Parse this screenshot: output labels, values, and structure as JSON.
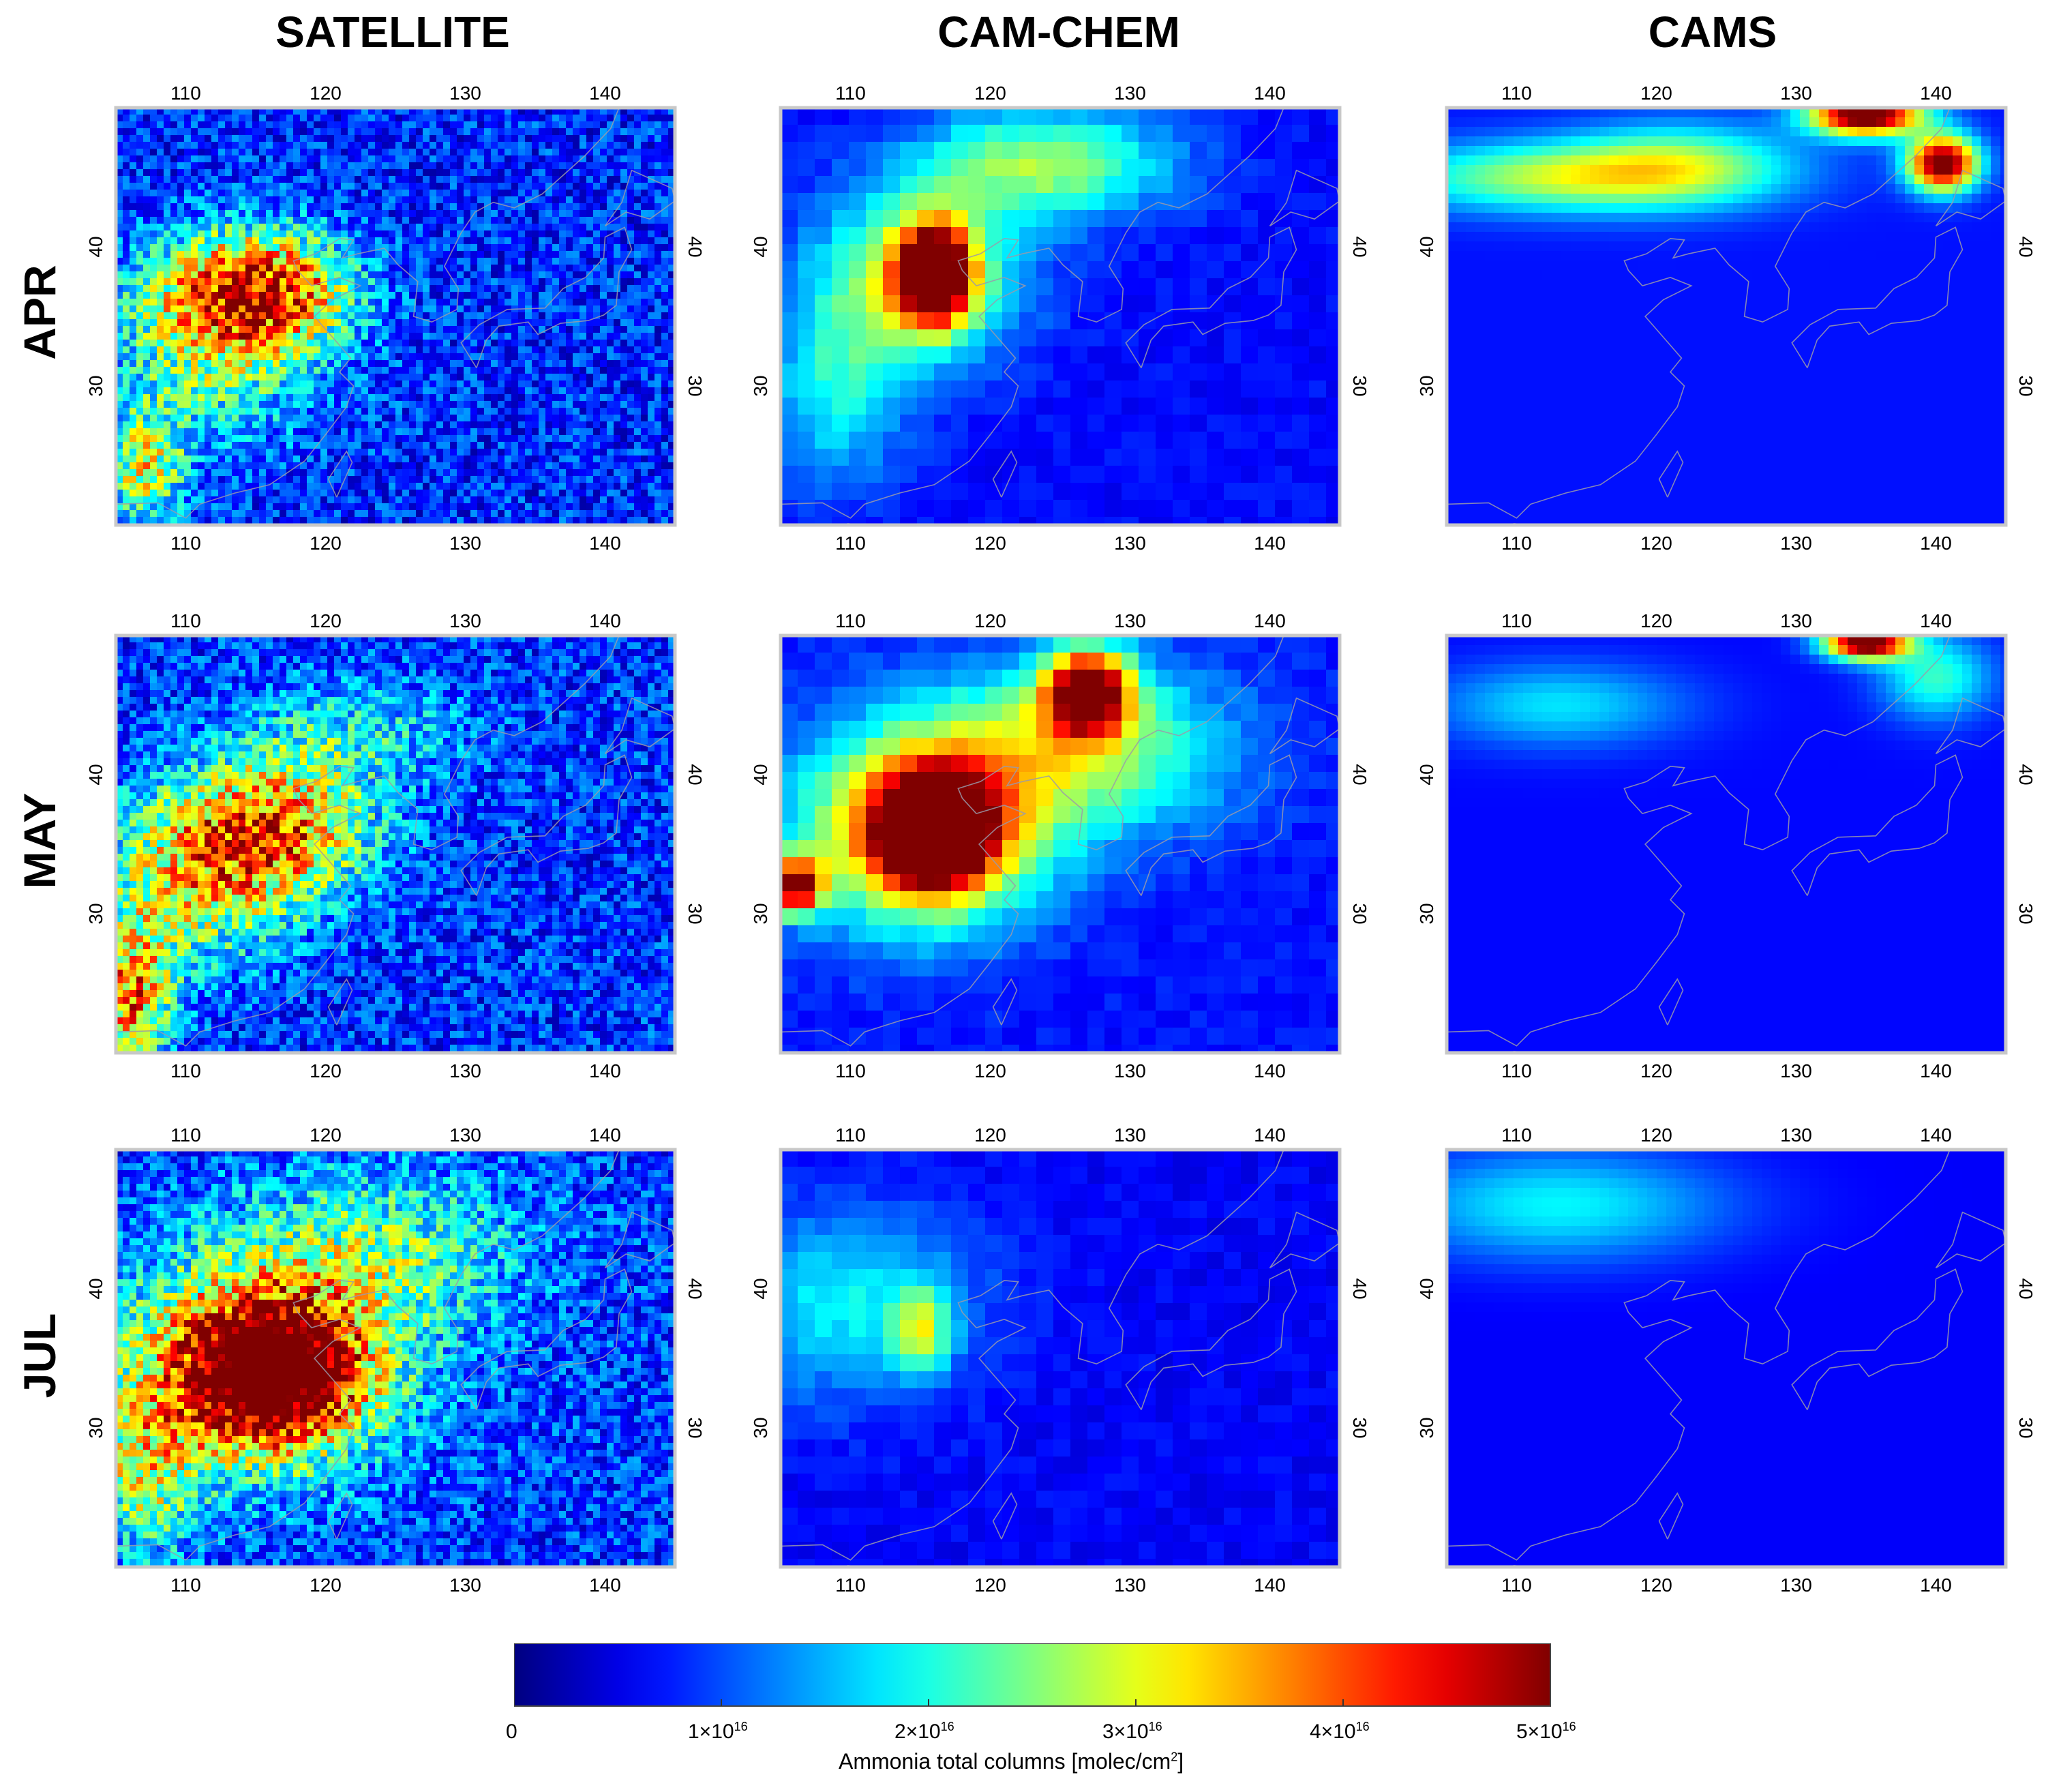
{
  "columns": [
    "SATELLITE",
    "CAM-CHEM",
    "CAMS"
  ],
  "rows": [
    "APR",
    "MAY",
    "JUL"
  ],
  "lon_ticks": [
    "110",
    "120",
    "130",
    "140"
  ],
  "lat_ticks": [
    "40",
    "30"
  ],
  "colorbar": {
    "ticks": [
      {
        "base": "0",
        "exp": ""
      },
      {
        "base": "1×10",
        "exp": "16"
      },
      {
        "base": "2×10",
        "exp": "16"
      },
      {
        "base": "3×10",
        "exp": "16"
      },
      {
        "base": "4×10",
        "exp": "16"
      },
      {
        "base": "5×10",
        "exp": "16"
      }
    ],
    "label_text": "Ammonia total columns [molec/cm",
    "label_exp": "2",
    "label_close": "]",
    "range": [
      0,
      5e+16
    ],
    "colormap": "jet"
  },
  "map_extent": {
    "lon": [
      105,
      145
    ],
    "lat": [
      20,
      50
    ]
  },
  "colors": {
    "background": "#00007f",
    "coastline": "#9a9aaa"
  },
  "panels": [
    {
      "col": 0,
      "row": 0,
      "style": "speckle",
      "base": 0.16,
      "blobs": [
        {
          "lon": 116,
          "lat": 37,
          "rx": 6,
          "ry": 4,
          "v": 0.55
        },
        {
          "lon": 112,
          "lat": 36,
          "rx": 7,
          "ry": 5,
          "v": 0.35
        },
        {
          "lon": 107,
          "lat": 24,
          "rx": 3,
          "ry": 4,
          "v": 0.4
        },
        {
          "lon": 112,
          "lat": 30,
          "rx": 8,
          "ry": 5,
          "v": 0.2
        }
      ]
    },
    {
      "col": 1,
      "row": 0,
      "style": "block",
      "base": 0.13,
      "blobs": [
        {
          "lon": 116,
          "lat": 38,
          "rx": 2.5,
          "ry": 3.5,
          "v": 0.95
        },
        {
          "lon": 115,
          "lat": 38,
          "rx": 7,
          "ry": 6,
          "v": 0.45
        },
        {
          "lon": 124,
          "lat": 46,
          "rx": 9,
          "ry": 4,
          "v": 0.4
        },
        {
          "lon": 109,
          "lat": 30,
          "rx": 5,
          "ry": 7,
          "v": 0.25
        }
      ]
    },
    {
      "col": 2,
      "row": 0,
      "style": "smooth",
      "base": 0.14,
      "blobs": [
        {
          "lon": 135,
          "lat": 49.5,
          "rx": 4,
          "ry": 1.5,
          "v": 1.0
        },
        {
          "lon": 140.5,
          "lat": 46,
          "rx": 2.5,
          "ry": 2,
          "v": 0.95
        },
        {
          "lon": 113,
          "lat": 45,
          "rx": 12,
          "ry": 2.5,
          "v": 0.4
        },
        {
          "lon": 122,
          "lat": 46,
          "rx": 8,
          "ry": 3,
          "v": 0.3
        }
      ]
    },
    {
      "col": 0,
      "row": 1,
      "style": "speckle",
      "base": 0.17,
      "blobs": [
        {
          "lon": 116,
          "lat": 36,
          "rx": 7,
          "ry": 5,
          "v": 0.6
        },
        {
          "lon": 110,
          "lat": 32,
          "rx": 7,
          "ry": 6,
          "v": 0.35
        },
        {
          "lon": 106,
          "lat": 24,
          "rx": 3,
          "ry": 5,
          "v": 0.55
        },
        {
          "lon": 122,
          "lat": 43,
          "rx": 8,
          "ry": 4,
          "v": 0.2
        }
      ]
    },
    {
      "col": 1,
      "row": 1,
      "style": "block",
      "base": 0.14,
      "blobs": [
        {
          "lon": 116,
          "lat": 36,
          "rx": 4,
          "ry": 4,
          "v": 1.0
        },
        {
          "lon": 127,
          "lat": 46,
          "rx": 3,
          "ry": 3,
          "v": 0.9
        },
        {
          "lon": 115,
          "lat": 36,
          "rx": 9,
          "ry": 7,
          "v": 0.6
        },
        {
          "lon": 126,
          "lat": 42,
          "rx": 11,
          "ry": 6,
          "v": 0.4
        },
        {
          "lon": 106,
          "lat": 32,
          "rx": 2,
          "ry": 2,
          "v": 0.8
        }
      ]
    },
    {
      "col": 2,
      "row": 1,
      "style": "smooth",
      "base": 0.13,
      "blobs": [
        {
          "lon": 135,
          "lat": 49.5,
          "rx": 3,
          "ry": 1.2,
          "v": 1.0
        },
        {
          "lon": 140,
          "lat": 47,
          "rx": 4,
          "ry": 3,
          "v": 0.3
        },
        {
          "lon": 113,
          "lat": 45,
          "rx": 9,
          "ry": 3,
          "v": 0.22
        }
      ]
    },
    {
      "col": 0,
      "row": 2,
      "style": "speckle",
      "base": 0.18,
      "blobs": [
        {
          "lon": 116,
          "lat": 34,
          "rx": 6,
          "ry": 5,
          "v": 1.0
        },
        {
          "lon": 115,
          "lat": 35,
          "rx": 11,
          "ry": 8,
          "v": 0.4
        },
        {
          "lon": 124,
          "lat": 43,
          "rx": 10,
          "ry": 6,
          "v": 0.25
        },
        {
          "lon": 107,
          "lat": 27,
          "rx": 4,
          "ry": 6,
          "v": 0.35
        }
      ]
    },
    {
      "col": 1,
      "row": 2,
      "style": "block",
      "base": 0.12,
      "blobs": [
        {
          "lon": 110,
          "lat": 39,
          "rx": 9,
          "ry": 7,
          "v": 0.25
        },
        {
          "lon": 115,
          "lat": 37,
          "rx": 2,
          "ry": 3,
          "v": 0.35
        }
      ]
    },
    {
      "col": 2,
      "row": 2,
      "style": "smooth",
      "base": 0.12,
      "blobs": [
        {
          "lon": 113,
          "lat": 46,
          "rx": 12,
          "ry": 4,
          "v": 0.25
        }
      ]
    }
  ]
}
